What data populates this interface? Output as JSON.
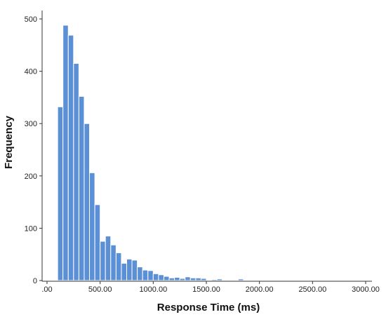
{
  "chart_data": {
    "type": "bar",
    "title": "",
    "xlabel": "Response Time (ms)",
    "ylabel": "Frequency",
    "bin_width": 50,
    "bin_start": 100,
    "values": [
      332,
      488,
      469,
      415,
      352,
      300,
      206,
      145,
      75,
      85,
      68,
      53,
      33,
      41,
      39,
      26,
      20,
      19,
      13,
      11,
      8,
      5,
      6,
      4,
      7,
      5,
      5,
      4,
      1,
      2,
      3,
      1,
      1,
      1,
      3,
      1,
      1,
      0,
      0,
      1
    ],
    "xlim": [
      0,
      3000
    ],
    "ylim": [
      0,
      500
    ],
    "x_ticks": [
      0,
      500,
      1000,
      1500,
      2000,
      2500,
      3000
    ],
    "x_tick_labels": [
      ".00",
      "500.00",
      "1000.00",
      "1500.00",
      "2000.00",
      "2500.00",
      "3000.00"
    ],
    "y_ticks": [
      0,
      100,
      200,
      300,
      400,
      500
    ],
    "y_tick_labels": [
      "0",
      "100",
      "200",
      "300",
      "400",
      "500"
    ],
    "grid": false,
    "legend": "none",
    "bar_color": "#5b8fd6",
    "bar_edge_color": "#ffffff"
  }
}
